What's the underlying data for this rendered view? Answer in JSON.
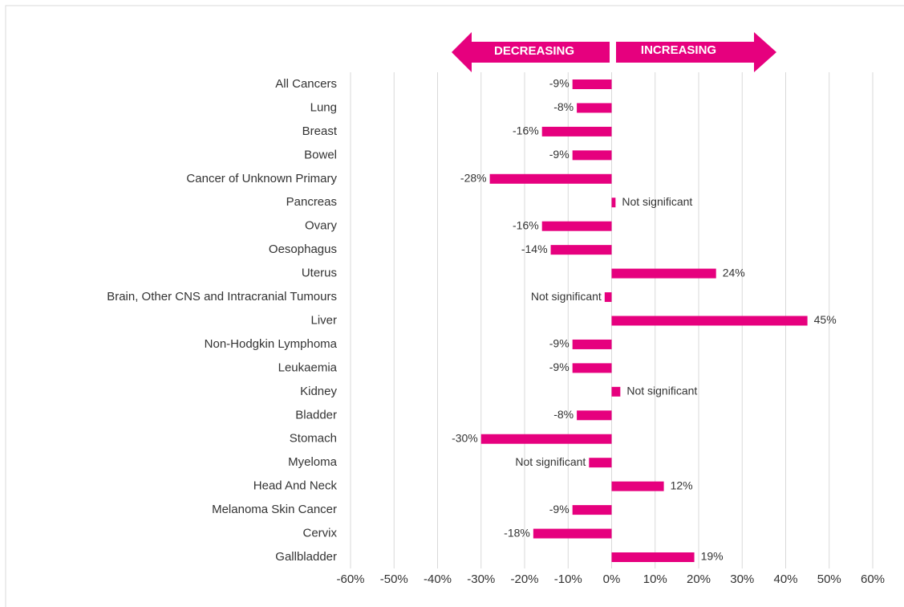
{
  "chart_data": {
    "type": "hbar",
    "annotations": [
      "DECREASING",
      "INCREASING"
    ],
    "categories": [
      "All Cancers",
      "Lung",
      "Breast",
      "Bowel",
      "Cancer of Unknown Primary",
      "Pancreas",
      "Ovary",
      "Oesophagus",
      "Uterus",
      "Brain, Other CNS and Intracranial Tumours",
      "Liver",
      "Non-Hodgkin Lymphoma",
      "Leukaemia",
      "Kidney",
      "Bladder",
      "Stomach",
      "Myeloma",
      "Head And Neck",
      "Melanoma Skin Cancer",
      "Cervix",
      "Gallbladder"
    ],
    "values": [
      -9,
      -8,
      -16,
      -9,
      -28,
      0.9,
      -16,
      -14,
      24,
      -1.6,
      45,
      -9,
      -9,
      2,
      -8,
      -30,
      -5.2,
      12,
      -9,
      -18,
      19
    ],
    "value_labels": [
      "-9%",
      "-8%",
      "-16%",
      "-9%",
      "-28%",
      "Not significant",
      "-16%",
      "-14%",
      "24%",
      "Not significant",
      "45%",
      "-9%",
      "-9%",
      "Not significant",
      "-8%",
      "-30%",
      "Not significant",
      "12%",
      "-9%",
      "-18%",
      "19%"
    ],
    "color": "#e6007e",
    "xlim": [
      -60,
      60
    ],
    "xticks": [
      {
        "value": -60,
        "label": "-60%"
      },
      {
        "value": -50,
        "label": "-50%"
      },
      {
        "value": -40,
        "label": "-40%"
      },
      {
        "value": -30,
        "label": "-30%"
      },
      {
        "value": -20,
        "label": "-20%"
      },
      {
        "value": -10,
        "label": "-10%"
      },
      {
        "value": 0,
        "label": "0%"
      },
      {
        "value": 10,
        "label": "10%"
      },
      {
        "value": 20,
        "label": "20%"
      },
      {
        "value": 30,
        "label": "30%"
      },
      {
        "value": 40,
        "label": "40%"
      },
      {
        "value": 50,
        "label": "50%"
      },
      {
        "value": 60,
        "label": "60%"
      }
    ],
    "grid": true
  }
}
